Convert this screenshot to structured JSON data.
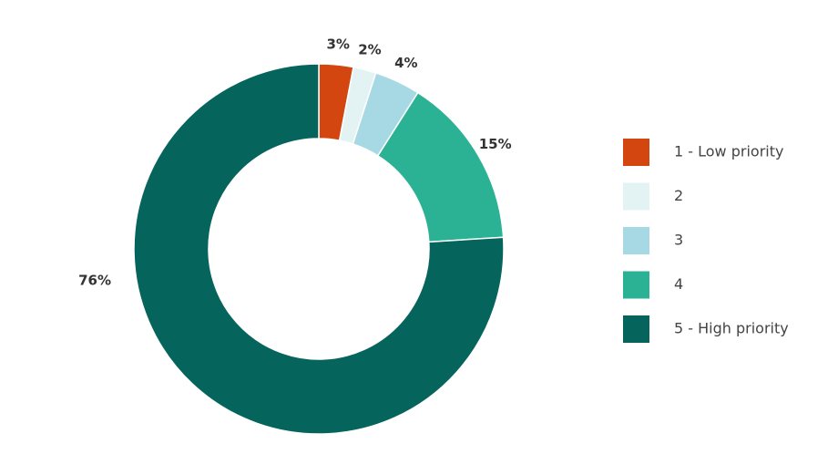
{
  "chart_data": {
    "type": "donut",
    "categories": [
      "1 - Low priority",
      "2",
      "3",
      "4",
      "5 - High priority"
    ],
    "values": [
      3,
      2,
      4,
      15,
      76
    ],
    "value_labels": [
      "3%",
      "2%",
      "4%",
      "15%",
      "76%"
    ],
    "colors": [
      "#d4460f",
      "#e3f3f4",
      "#a6d9e3",
      "#2bb294",
      "#05645c"
    ]
  }
}
